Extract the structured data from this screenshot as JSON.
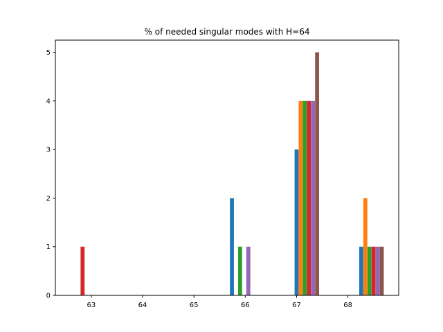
{
  "chart_data": {
    "type": "bar",
    "title": "% of needed singular modes with H=64",
    "xlabel": "",
    "ylabel": "",
    "xlim": [
      62.3,
      68.99
    ],
    "ylim": [
      0,
      5.25
    ],
    "xticks": [
      63,
      64,
      65,
      66,
      67,
      68
    ],
    "yticks": [
      0,
      1,
      2,
      3,
      4,
      5
    ],
    "grid": false,
    "legend": "none",
    "bar_width": 0.078,
    "series": [
      {
        "color": "#1f77b4",
        "bars": [
          {
            "x": 65.74,
            "value": 2
          },
          {
            "x": 67.0,
            "value": 3
          },
          {
            "x": 68.26,
            "value": 1
          }
        ]
      },
      {
        "color": "#ff7f0e",
        "bars": [
          {
            "x": 67.08,
            "value": 4
          },
          {
            "x": 68.34,
            "value": 2
          }
        ]
      },
      {
        "color": "#2ca02c",
        "bars": [
          {
            "x": 65.9,
            "value": 1
          },
          {
            "x": 67.16,
            "value": 4
          },
          {
            "x": 68.42,
            "value": 1
          }
        ]
      },
      {
        "color": "#d62728",
        "bars": [
          {
            "x": 62.83,
            "value": 1
          },
          {
            "x": 67.24,
            "value": 4
          },
          {
            "x": 68.5,
            "value": 1
          }
        ]
      },
      {
        "color": "#9467bd",
        "bars": [
          {
            "x": 66.06,
            "value": 1
          },
          {
            "x": 67.32,
            "value": 4
          },
          {
            "x": 68.58,
            "value": 1
          }
        ]
      },
      {
        "color": "#8c564b",
        "bars": [
          {
            "x": 67.4,
            "value": 5
          },
          {
            "x": 68.66,
            "value": 1
          }
        ]
      }
    ]
  }
}
